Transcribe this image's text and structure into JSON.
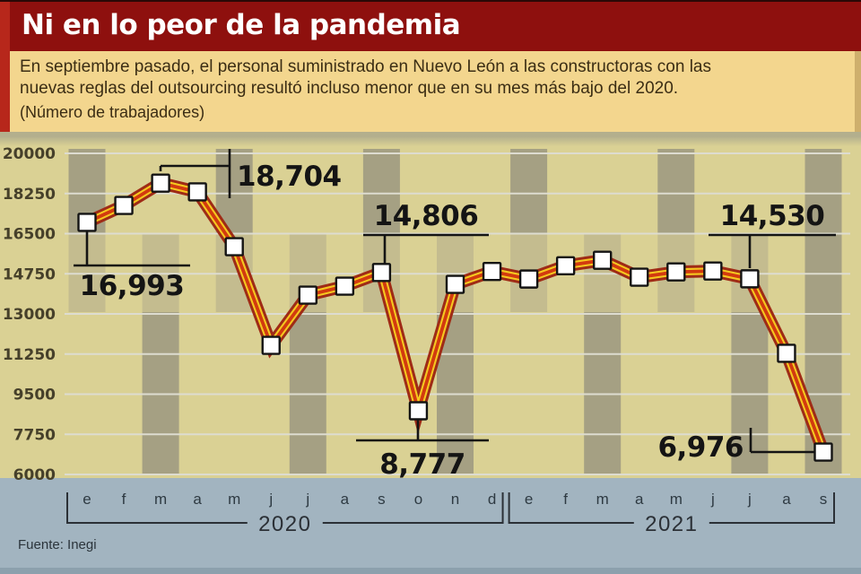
{
  "header": {
    "title": "Ni en lo peor de la pandemia"
  },
  "subtitle": {
    "line1": "En septiembre pasado, el personal suministrado en Nuevo León a las constructoras con las",
    "line2": "nuevas reglas del outsourcing resultó incluso menor que en su mes más bajo del 2020.",
    "note": "(Número de trabajadores)"
  },
  "footer": {
    "source": "Fuente: Inegi"
  },
  "colors": {
    "title_bg": "#8e100e",
    "accent_red": "#b7271b",
    "band_gold": "#f3d68e",
    "chart_bg": "#dad194",
    "stripe_dark": "#a5a083",
    "stripe_medium": "#c4bc8f",
    "footer_blue": "#a2b4c0",
    "grid": "#dddcd0",
    "line_outer": "#9f2b16",
    "line_yellow": "#f5c81f",
    "line_inner": "#d23a0f",
    "marker_fill": "#ffffff",
    "marker_stroke": "#141414",
    "annotation_ink": "#141414",
    "ytick_ink": "#46402a",
    "month_ink": "#2e3a42",
    "year_ink": "#2b3036"
  },
  "chart_data": {
    "type": "line",
    "title": "Ni en lo peor de la pandemia",
    "unit_note": "(Número de trabajadores)",
    "months": [
      "e",
      "f",
      "m",
      "a",
      "m",
      "j",
      "j",
      "a",
      "s",
      "o",
      "n",
      "d",
      "e",
      "f",
      "m",
      "a",
      "m",
      "j",
      "j",
      "a",
      "s"
    ],
    "year_groups": [
      {
        "label": "2020",
        "start": 0,
        "count": 12
      },
      {
        "label": "2021",
        "start": 12,
        "count": 9
      }
    ],
    "values": [
      16993,
      17730,
      18704,
      18320,
      15930,
      11630,
      13820,
      14210,
      14806,
      8777,
      14290,
      14850,
      14520,
      15100,
      15340,
      14600,
      14830,
      14870,
      14530,
      11280,
      6976
    ],
    "ylim": [
      6000,
      20000
    ],
    "yticks": [
      20000,
      18250,
      16500,
      14750,
      13000,
      11250,
      9500,
      7750,
      6000
    ],
    "grid": "on",
    "annotations": [
      {
        "point_index": 0,
        "text": "16,993"
      },
      {
        "point_index": 2,
        "text": "18,704"
      },
      {
        "point_index": 8,
        "text": "14,806"
      },
      {
        "point_index": 9,
        "text": "8,777"
      },
      {
        "point_index": 18,
        "text": "14,530"
      },
      {
        "point_index": 20,
        "text": "6,976"
      }
    ],
    "source": "Fuente: Inegi"
  }
}
